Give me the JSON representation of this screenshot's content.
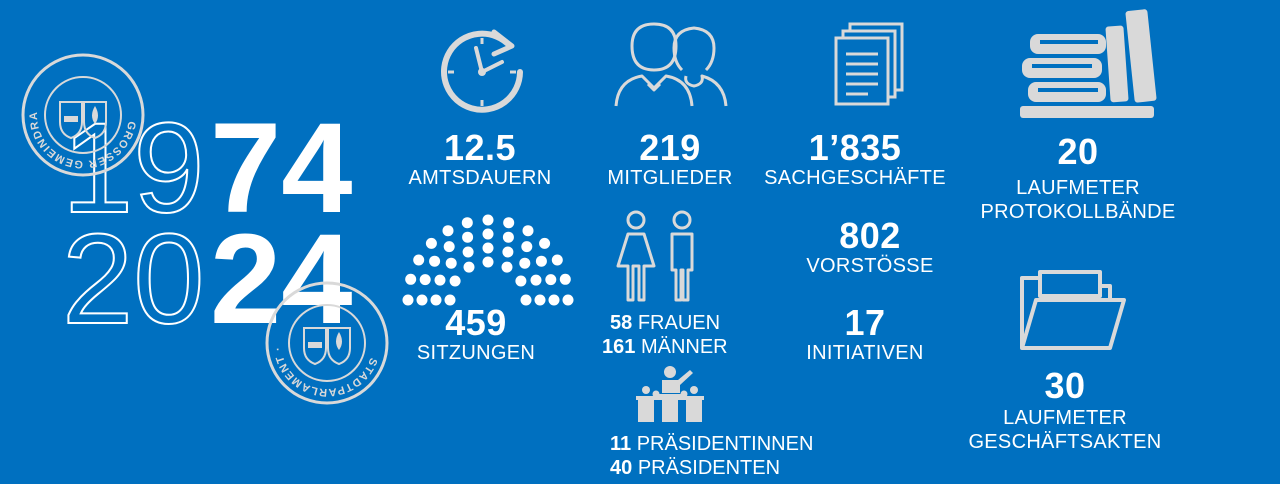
{
  "years": {
    "top_outline": "19",
    "top_solid": "74",
    "bottom_outline": "20",
    "bottom_solid": "24"
  },
  "seals": {
    "top_text": "GROSSER GEMEINDRAT · ILLNAU-EFFRETIKON",
    "bottom_text": "STADTPARLAMENT · ILLNAU-EFFRETIKON"
  },
  "stats": {
    "amtsdauern": {
      "number": "12.5",
      "label": "AMTSDAUERN",
      "icon": "clock-icon"
    },
    "mitglieder": {
      "number": "219",
      "label": "MITGLIEDER",
      "icon": "people-icon"
    },
    "sachgeschaefte": {
      "number": "1’835",
      "label": "SACHGESCHÄFTE",
      "icon": "documents-icon"
    },
    "protokollbaende": {
      "number": "20",
      "label_line1": "LAUFMETER",
      "label_line2": "PROTOKOLLBÄNDE",
      "icon": "books-icon"
    },
    "sitzungen": {
      "number": "459",
      "label": "SITZUNGEN",
      "icon": "parliament-seats-icon"
    },
    "gender": {
      "icon": "woman-man-icon",
      "women_number": "58",
      "women_label": "FRAUEN",
      "men_number": "161",
      "men_label": "MÄNNER"
    },
    "vorstoesse": {
      "number": "802",
      "label": "VORSTÖSSE"
    },
    "initiativen": {
      "number": "17",
      "label": "INITIATIVEN"
    },
    "geschaeftsakten": {
      "number": "30",
      "label_line1": "LAUFMETER",
      "label_line2": "GESCHÄFTSAKTEN",
      "icon": "folder-icon"
    },
    "praesidium": {
      "icon": "speaker-podium-icon",
      "female_number": "11",
      "female_label": "PRÄSIDENTINNEN",
      "male_number": "40",
      "male_label": "PRÄSIDENTEN"
    }
  },
  "colors": {
    "background": "#0070c0",
    "text": "#ffffff",
    "icon": "#d9d9d9"
  }
}
